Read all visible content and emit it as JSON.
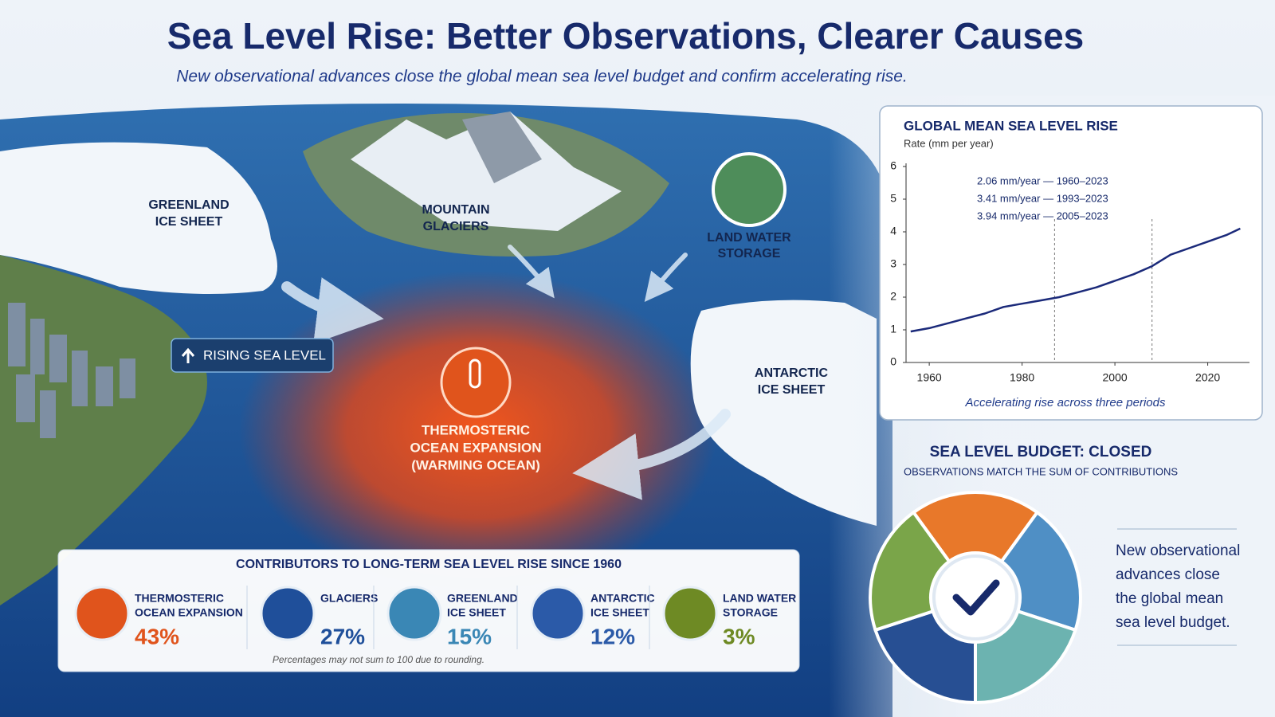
{
  "header": {
    "title": "Sea Level Rise: Better Observations, Clearer Causes",
    "subtitle": "New observational advances close the global mean sea level budget and confirm accelerating rise."
  },
  "map_labels": {
    "greenland": [
      "GREENLAND",
      "ICE SHEET"
    ],
    "glaciers": [
      "MOUNTAIN",
      "GLACIERS"
    ],
    "land_water": [
      "LAND WATER",
      "STORAGE"
    ],
    "antarctic": [
      "ANTARCTIC",
      "ICE SHEET"
    ],
    "rising": "RISING SEA LEVEL",
    "thermosteric": [
      "THERMOSTERIC",
      "OCEAN EXPANSION",
      "(WARMING OCEAN)"
    ]
  },
  "chart_data": {
    "type": "line",
    "title": "GLOBAL MEAN SEA LEVEL RISE",
    "y_label": "Rate (mm per year)",
    "annotations": [
      "2.06 mm/year — 1960–2023",
      "3.41 mm/year — 1993–2023",
      "3.94 mm/year — 2005–2023"
    ],
    "caption": "Accelerating rise across three periods",
    "x": [
      1956,
      1960,
      1964,
      1968,
      1972,
      1976,
      1980,
      1984,
      1988,
      1992,
      1996,
      2000,
      2004,
      2008,
      2012,
      2016,
      2020,
      2024,
      2027
    ],
    "values": [
      0.95,
      1.05,
      1.2,
      1.35,
      1.5,
      1.7,
      1.8,
      1.9,
      2.0,
      2.15,
      2.3,
      2.5,
      2.7,
      2.95,
      3.3,
      3.5,
      3.7,
      3.9,
      4.1
    ],
    "color": "#1b2a7a",
    "xlim": [
      1955,
      2029
    ],
    "ylim": [
      0,
      6
    ],
    "xticks": [
      1960,
      1980,
      2000,
      2020
    ],
    "yticks": [
      0,
      1,
      2,
      3,
      4,
      5,
      6
    ],
    "vlines": [
      1987,
      2008
    ]
  },
  "budget": {
    "title": "SEA LEVEL BUDGET: CLOSED",
    "subtitle": "OBSERVATIONS MATCH THE SUM OF CONTRIBUTIONS",
    "note": [
      "New observational",
      "advances close",
      "the global mean",
      "sea level budget."
    ]
  },
  "contributors": {
    "title": "CONTRIBUTORS TO LONG-TERM SEA LEVEL RISE SINCE 1960",
    "items": [
      {
        "name": [
          "THERMOSTERIC",
          "OCEAN EXPANSION"
        ],
        "share": "43%",
        "color": "#e0541c"
      },
      {
        "name": [
          "GLACIERS"
        ],
        "share": "27%",
        "color": "#1f4f9a"
      },
      {
        "name": [
          "GREENLAND",
          "ICE SHEET"
        ],
        "share": "15%",
        "color": "#3a87b5"
      },
      {
        "name": [
          "ANTARCTIC",
          "ICE SHEET"
        ],
        "share": "12%",
        "color": "#2b5aa8"
      },
      {
        "name": [
          "LAND WATER",
          "STORAGE"
        ],
        "share": "3%",
        "color": "#6e8a24"
      }
    ],
    "footnote": "Percentages may not sum to 100 due to rounding."
  }
}
